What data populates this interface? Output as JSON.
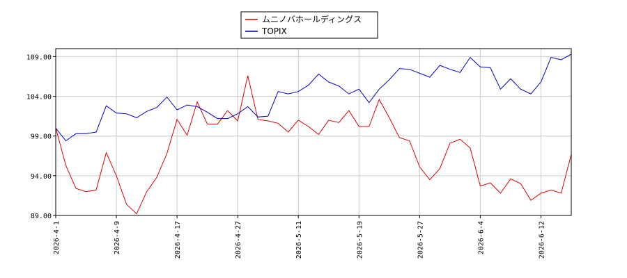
{
  "chart_data": {
    "type": "line",
    "title": "",
    "xlabel": "",
    "ylabel": "",
    "grid": true,
    "legend_placement": "top-center",
    "ylim": [
      89.0,
      110.0
    ],
    "yticks": [
      "89.00",
      "94.00",
      "99.00",
      "104.00",
      "109.00"
    ],
    "ytick_values": [
      89,
      94,
      99,
      104,
      109
    ],
    "xticks": [
      "2026-4-1",
      "2026-4-9",
      "2026-4-17",
      "2026-4-27",
      "2026-5-11",
      "2026-5-19",
      "2026-5-27",
      "2026-6-4",
      "2026-6-12"
    ],
    "xtick_indices": [
      0,
      6,
      12,
      18,
      24,
      30,
      36,
      42,
      48
    ],
    "point_count": 52,
    "series": [
      {
        "name": "ムニノバホールディングス",
        "color": "#dd0000",
        "values": [
          100.0,
          95.3,
          92.4,
          92.0,
          92.2,
          96.9,
          94.0,
          90.4,
          89.2,
          92.0,
          93.8,
          96.8,
          101.1,
          99.1,
          103.3,
          100.5,
          100.5,
          102.2,
          100.9,
          106.6,
          101.1,
          100.9,
          100.6,
          99.5,
          101.0,
          100.2,
          99.2,
          101.0,
          100.7,
          102.2,
          100.2,
          100.2,
          103.6,
          101.3,
          98.8,
          98.4,
          95.1,
          93.5,
          94.9,
          98.1,
          98.6,
          97.5,
          92.7,
          93.1,
          91.8,
          93.6,
          93.0,
          90.9,
          91.8,
          92.2,
          91.8,
          96.7
        ]
      },
      {
        "name": "TOPIX",
        "color": "#0000cc",
        "values": [
          100.0,
          98.4,
          99.3,
          99.3,
          99.5,
          102.8,
          101.9,
          101.8,
          101.3,
          102.1,
          102.6,
          103.9,
          102.3,
          102.9,
          102.7,
          102.0,
          101.2,
          101.2,
          101.8,
          102.7,
          101.4,
          101.5,
          104.6,
          104.3,
          104.6,
          105.4,
          106.8,
          105.8,
          105.3,
          104.3,
          104.9,
          103.2,
          104.9,
          106.1,
          107.5,
          107.4,
          106.9,
          106.4,
          107.9,
          107.4,
          107.0,
          108.9,
          107.7,
          107.6,
          104.9,
          106.2,
          104.9,
          104.3,
          105.8,
          108.9,
          108.6,
          109.3
        ]
      }
    ]
  }
}
